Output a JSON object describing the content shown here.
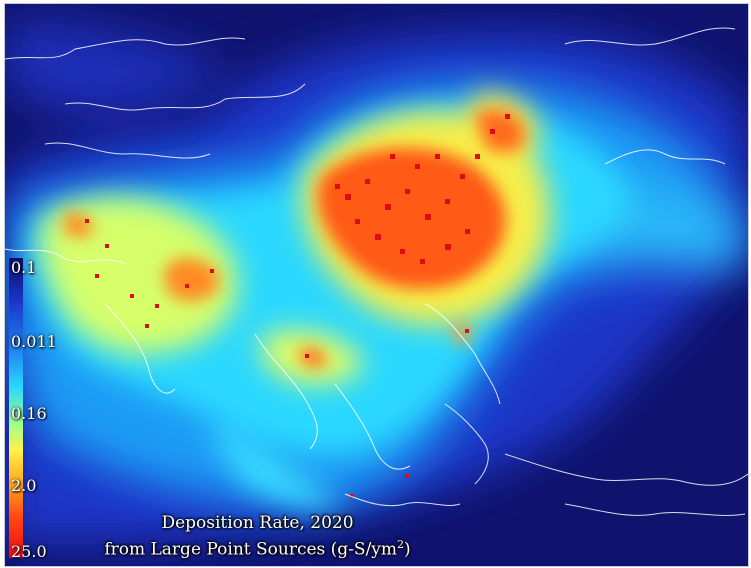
{
  "legend": {
    "labels": [
      "0.1",
      "0.011",
      "0.16",
      "2.0",
      "25.0"
    ]
  },
  "caption": {
    "line1": "Deposition Rate, 2020",
    "line2_prefix": "from Large Point Sources (g-S/ym",
    "line2_sup": "2",
    "line2_suffix": ")"
  },
  "colors": {
    "ocean_dark": "#10136e",
    "low": "#1b34c8",
    "mid_low": "#1e9cf5",
    "mid": "#2ad8ff",
    "mid_high": "#fff14a",
    "high": "#ff4a14",
    "peak": "#e00a12",
    "coastline": "#ffffff"
  }
}
